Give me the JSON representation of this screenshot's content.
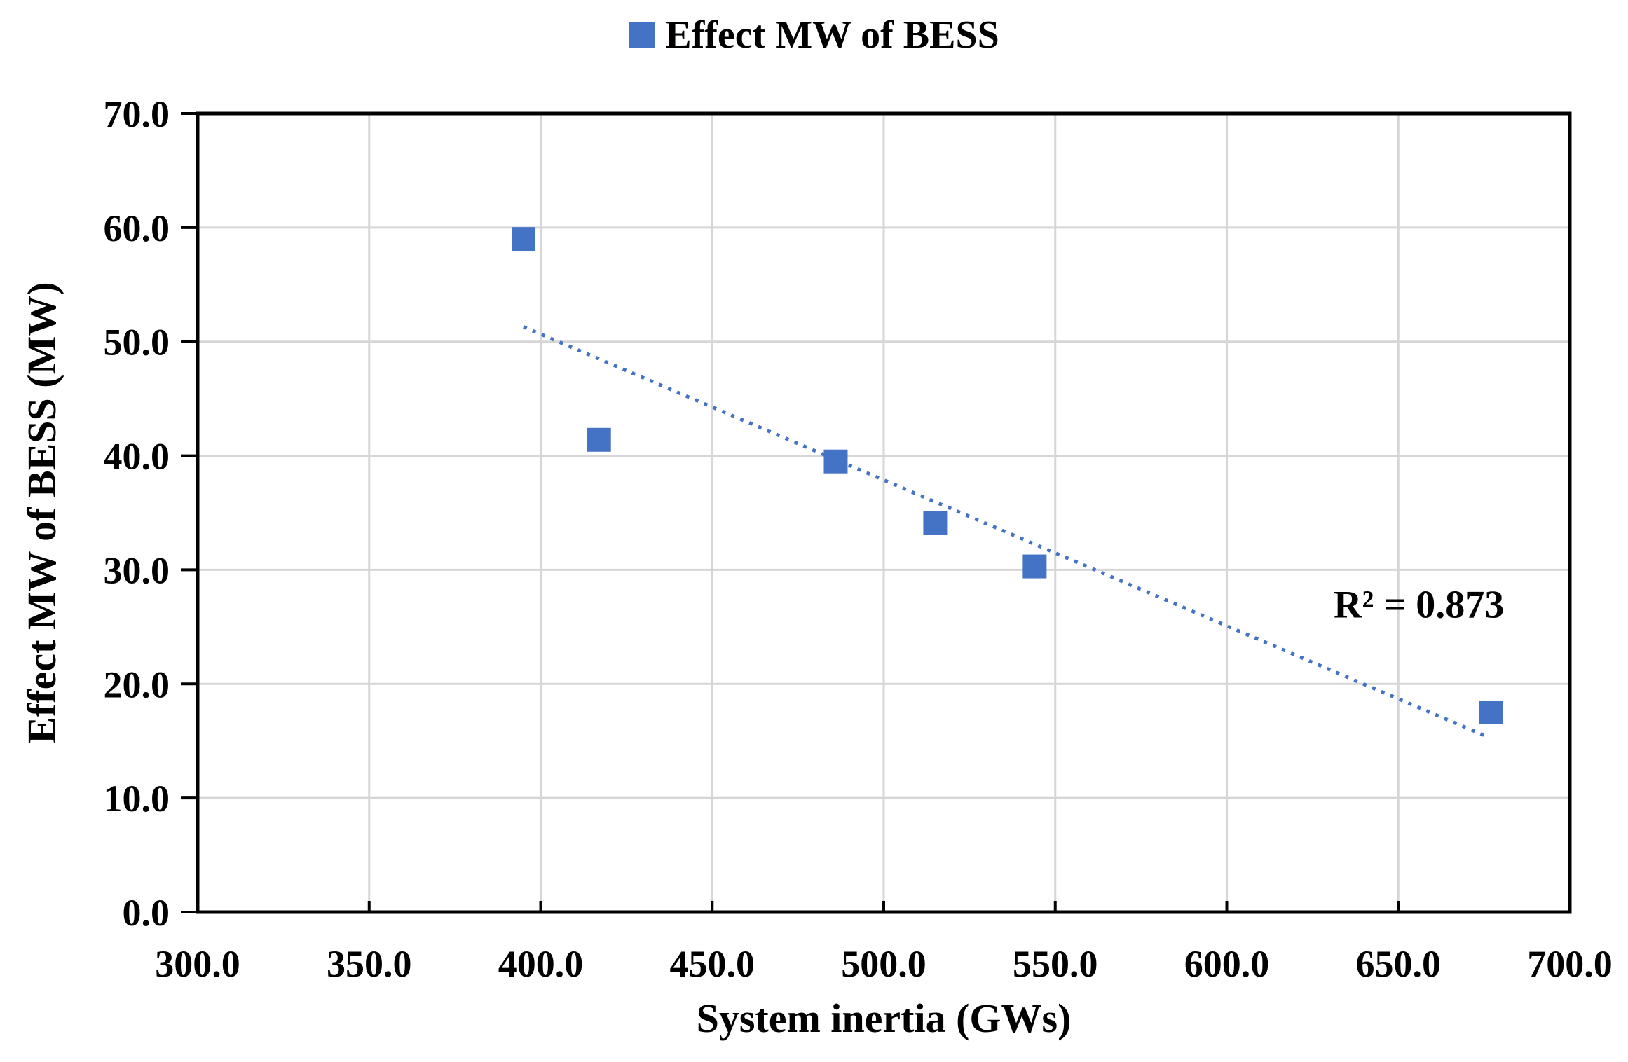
{
  "chart_data": {
    "type": "scatter",
    "title": "",
    "legend": {
      "label": "Effect MW of BESS",
      "marker": "square",
      "color": "#4472C4"
    },
    "xlabel": "System inertia (GWs)",
    "ylabel": "Effect MW of BESS (MW)",
    "xlim": [
      300.0,
      700.0
    ],
    "xtick_step": 50,
    "ylim": [
      0.0,
      70.0
    ],
    "ytick_step": 10,
    "tick_label_decimals": 1,
    "grid": true,
    "background_color": "#ffffff",
    "gridline_color": "#d6d6d6",
    "axis_color": "#000000",
    "series": [
      {
        "name": "Effect MW of BESS",
        "marker": "square",
        "color": "#4472C4",
        "points": [
          {
            "x": 395.0,
            "y": 59.0
          },
          {
            "x": 417.0,
            "y": 41.4
          },
          {
            "x": 486.0,
            "y": 39.5
          },
          {
            "x": 515.0,
            "y": 34.1
          },
          {
            "x": 544.0,
            "y": 30.3
          },
          {
            "x": 677.0,
            "y": 17.5
          }
        ]
      }
    ],
    "trendline": {
      "style": "dotted",
      "color": "#4472C4",
      "x_start": 395.0,
      "y_start": 51.3,
      "x_end": 675.0,
      "y_end": 15.5,
      "annotation": {
        "text": "R² = 0.873",
        "x": 656.0,
        "y": 27.0
      }
    }
  }
}
